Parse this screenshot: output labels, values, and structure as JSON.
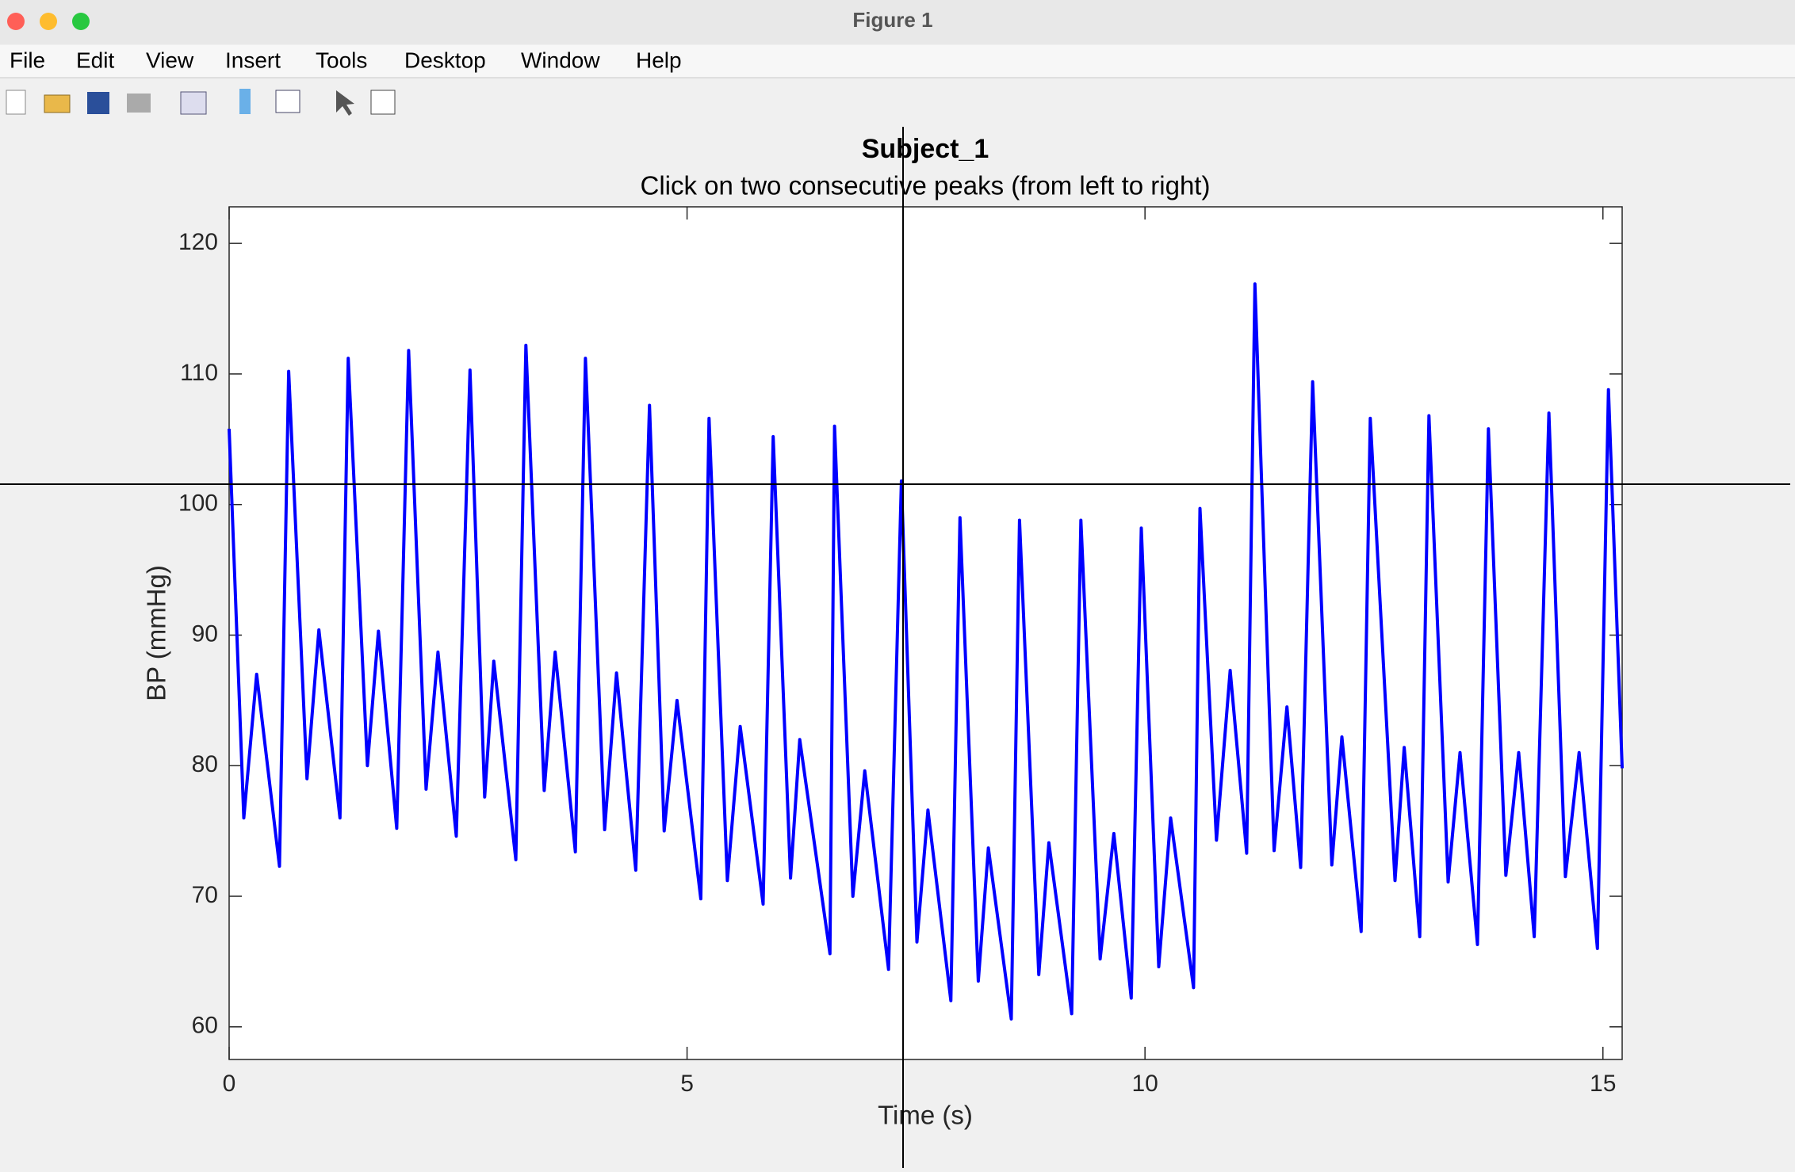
{
  "window": {
    "title": "Figure 1",
    "menu": [
      "File",
      "Edit",
      "View",
      "Insert",
      "Tools",
      "Desktop",
      "Window",
      "Help"
    ]
  },
  "chart_data": {
    "type": "line",
    "title": "Subject_1",
    "subtitle": "Click on two consecutive peaks (from left to right)",
    "xlabel": "Time (s)",
    "ylabel": "BP (mmHg)",
    "xlim": [
      0,
      15.21
    ],
    "ylim": [
      57.5,
      122.8
    ],
    "xticks": [
      0,
      5,
      10,
      15
    ],
    "yticks": [
      60,
      70,
      80,
      90,
      100,
      110,
      120
    ],
    "series": [
      {
        "color": "#0000ff",
        "x": [
          0,
          0.16,
          0.3,
          0.55,
          0.65,
          0.85,
          0.98,
          1.21,
          1.3,
          1.51,
          1.63,
          1.83,
          1.96,
          2.15,
          2.28,
          2.48,
          2.63,
          2.79,
          2.89,
          3.13,
          3.24,
          3.44,
          3.56,
          3.78,
          3.89,
          4.1,
          4.23,
          4.44,
          4.59,
          4.75,
          4.89,
          5.15,
          5.24,
          5.44,
          5.58,
          5.83,
          5.94,
          6.13,
          6.23,
          6.56,
          6.61,
          6.81,
          6.94,
          7.2,
          7.34,
          7.51,
          7.63,
          7.88,
          7.98,
          8.18,
          8.29,
          8.54,
          8.63,
          8.84,
          8.95,
          9.2,
          9.3,
          9.51,
          9.66,
          9.85,
          9.96,
          10.15,
          10.28,
          10.53,
          10.6,
          10.78,
          10.93,
          11.11,
          11.2,
          11.41,
          11.55,
          11.7,
          11.83,
          12.04,
          12.15,
          12.36,
          12.46,
          12.73,
          12.83,
          13.0,
          13.1,
          13.31,
          13.44,
          13.63,
          13.75,
          13.94,
          14.08,
          14.25,
          14.41,
          14.59,
          14.74,
          14.94,
          15.06,
          15.21
        ],
        "values": [
          105.8,
          76,
          87,
          72.3,
          110.2,
          79,
          90.4,
          76,
          111.2,
          80,
          90.3,
          75.2,
          111.8,
          78.2,
          88.7,
          74.6,
          110.3,
          77.6,
          88,
          72.8,
          112.2,
          78.1,
          88.7,
          73.4,
          111.2,
          75.1,
          87.1,
          72,
          107.6,
          75,
          85,
          69.8,
          106.6,
          71.2,
          83,
          69.4,
          105.2,
          71.4,
          82,
          65.6,
          106,
          70,
          79.6,
          64.4,
          101.8,
          66.5,
          76.6,
          62,
          99,
          63.5,
          73.7,
          60.6,
          98.8,
          64,
          74.1,
          61,
          98.8,
          65.2,
          74.8,
          62.2,
          98.2,
          64.6,
          76,
          63,
          99.7,
          74.3,
          87.3,
          73.3,
          116.9,
          73.5,
          84.5,
          72.2,
          109.4,
          72.4,
          82.2,
          67.3,
          106.6,
          71.2,
          81.4,
          66.9,
          106.8,
          71.1,
          81,
          66.3,
          105.8,
          71.6,
          81,
          66.9,
          107,
          71.5,
          81,
          66,
          108.8,
          79.8
        ]
      }
    ]
  }
}
